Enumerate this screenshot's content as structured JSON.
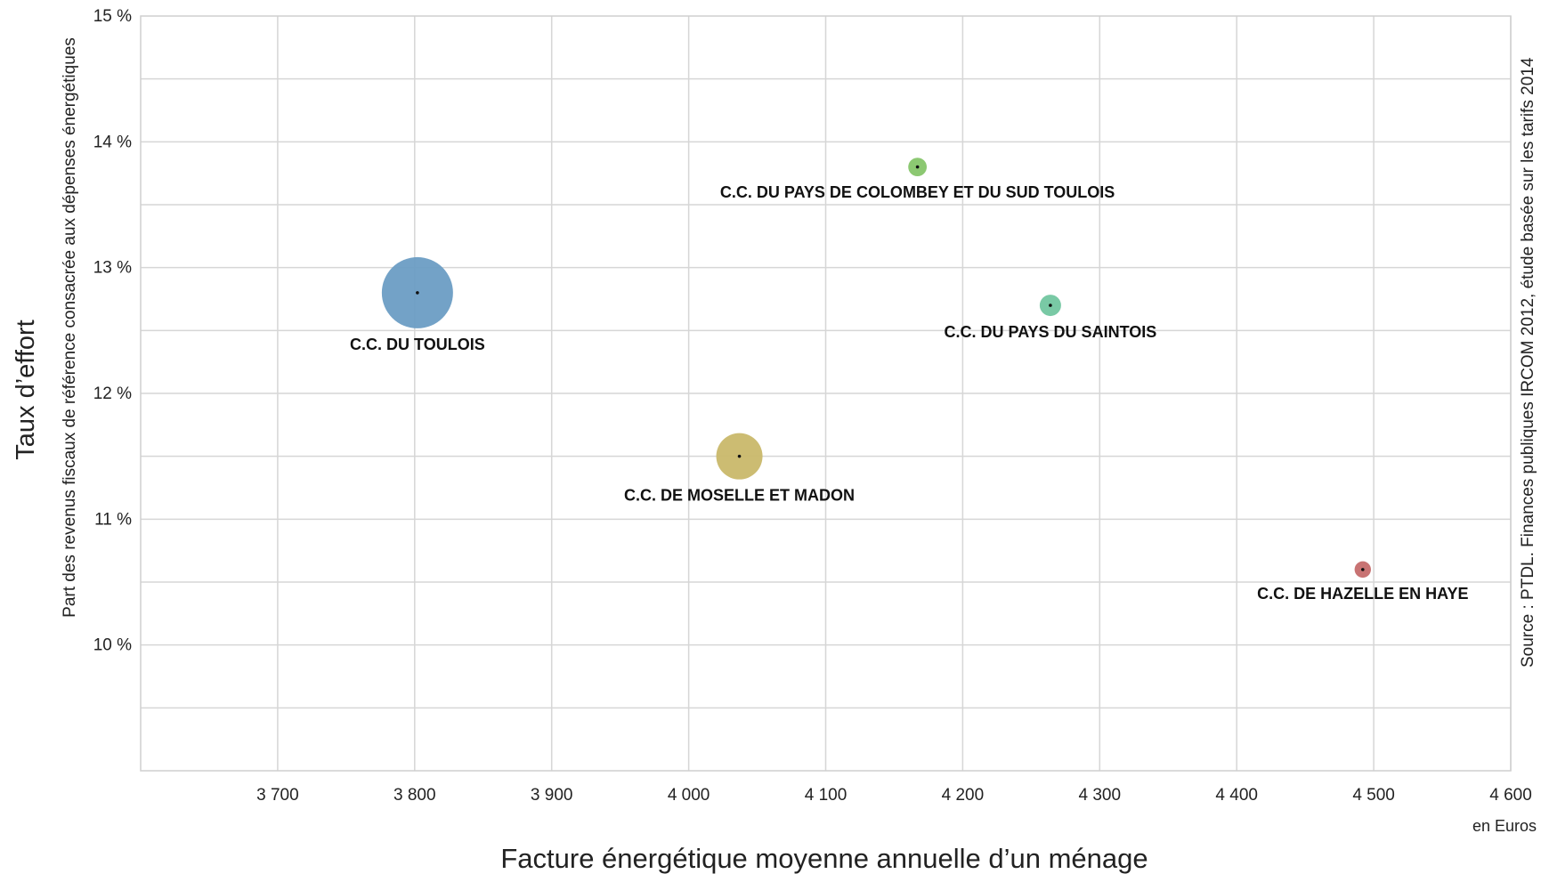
{
  "chart_data": {
    "type": "scatter",
    "ylabel": "Taux d’effort",
    "ylabel_sub": "Part des revenus fiscaux de référence consacrée aux dépenses énergétiques",
    "xlabel": "Facture énergétique moyenne annuelle d’un ménage",
    "x_unit": "en Euros",
    "source": "Source : PTDL. Finances publiques IRCOM 2012, étude basée sur les tarifs 2014",
    "xlim": [
      3600,
      4600
    ],
    "ylim": [
      9,
      15
    ],
    "x_ticks": [
      {
        "value": 3700,
        "label": "3 700"
      },
      {
        "value": 3800,
        "label": "3 800"
      },
      {
        "value": 3900,
        "label": "3 900"
      },
      {
        "value": 4000,
        "label": "4 000"
      },
      {
        "value": 4100,
        "label": "4 100"
      },
      {
        "value": 4200,
        "label": "4 200"
      },
      {
        "value": 4300,
        "label": "4 300"
      },
      {
        "value": 4400,
        "label": "4 400"
      },
      {
        "value": 4500,
        "label": "4 500"
      },
      {
        "value": 4600,
        "label": "4 600"
      }
    ],
    "y_ticks": [
      {
        "value": 10,
        "label": "10 %"
      },
      {
        "value": 11,
        "label": "11 %"
      },
      {
        "value": 12,
        "label": "12 %"
      },
      {
        "value": 13,
        "label": "13 %"
      },
      {
        "value": 14,
        "label": "14 %"
      },
      {
        "value": 15,
        "label": "15 %"
      }
    ],
    "y_grid_step": 0.5,
    "grid": true,
    "points": [
      {
        "name": "C.C. DU TOULOIS",
        "x": 3802,
        "y": 12.8,
        "size": 1.0,
        "color": "#6b9dc4"
      },
      {
        "name": "C.C. DU PAYS DE COLOMBEY ET DU SUD TOULOIS",
        "x": 4167,
        "y": 13.8,
        "size": 0.26,
        "color": "#86c56a"
      },
      {
        "name": "C.C. DU PAYS DU SAINTOIS",
        "x": 4264,
        "y": 12.7,
        "size": 0.3,
        "color": "#72c6a0"
      },
      {
        "name": "C.C. DE MOSELLE ET MADON",
        "x": 4037,
        "y": 11.5,
        "size": 0.65,
        "color": "#c9b86a"
      },
      {
        "name": "C.C. DE HAZELLE EN HAYE",
        "x": 4492,
        "y": 10.6,
        "size": 0.23,
        "color": "#c56c6c"
      }
    ]
  }
}
